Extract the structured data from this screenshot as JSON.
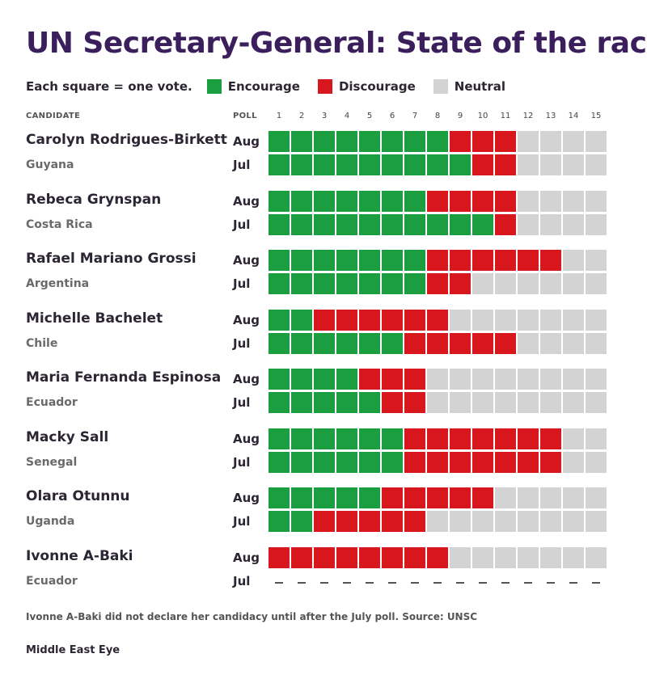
{
  "title": "UN Secretary-General: State of the race",
  "legend": {
    "note": "Each square = one vote.",
    "items": [
      {
        "label": "Encourage",
        "color": "#1a9e3f"
      },
      {
        "label": "Discourage",
        "color": "#d7161d"
      },
      {
        "label": "Neutral",
        "color": "#d3d3d3"
      }
    ]
  },
  "columns": {
    "candidate_header": "CANDIDATE",
    "poll_header": "POLL",
    "numbers": [
      "1",
      "2",
      "3",
      "4",
      "5",
      "6",
      "7",
      "8",
      "9",
      "10",
      "11",
      "12",
      "13",
      "14",
      "15"
    ]
  },
  "footnote": "Ivonne A-Baki did not declare her candidacy until after the July poll. Source: UNSC",
  "source": "Middle East Eye",
  "chart_data": {
    "type": "table",
    "total_votes": 15,
    "colors": {
      "encourage": "#1a9e3f",
      "discourage": "#d7161d",
      "neutral": "#d3d3d3"
    },
    "candidates": [
      {
        "name": "Carolyn Rodrigues-Birkett",
        "country": "Guyana",
        "polls": [
          {
            "label": "Aug",
            "encourage": 8,
            "discourage": 3,
            "neutral": 4
          },
          {
            "label": "Jul",
            "encourage": 9,
            "discourage": 2,
            "neutral": 4
          }
        ]
      },
      {
        "name": "Rebeca Grynspan",
        "country": "Costa Rica",
        "polls": [
          {
            "label": "Aug",
            "encourage": 7,
            "discourage": 4,
            "neutral": 4
          },
          {
            "label": "Jul",
            "encourage": 10,
            "discourage": 1,
            "neutral": 4
          }
        ]
      },
      {
        "name": "Rafael Mariano Grossi",
        "country": "Argentina",
        "polls": [
          {
            "label": "Aug",
            "encourage": 7,
            "discourage": 6,
            "neutral": 2
          },
          {
            "label": "Jul",
            "encourage": 7,
            "discourage": 2,
            "neutral": 6
          }
        ]
      },
      {
        "name": "Michelle Bachelet",
        "country": "Chile",
        "polls": [
          {
            "label": "Aug",
            "encourage": 2,
            "discourage": 6,
            "neutral": 7
          },
          {
            "label": "Jul",
            "encourage": 6,
            "discourage": 5,
            "neutral": 4
          }
        ]
      },
      {
        "name": "Maria Fernanda Espinosa",
        "country": "Ecuador",
        "polls": [
          {
            "label": "Aug",
            "encourage": 4,
            "discourage": 3,
            "neutral": 8
          },
          {
            "label": "Jul",
            "encourage": 5,
            "discourage": 2,
            "neutral": 8
          }
        ]
      },
      {
        "name": "Macky Sall",
        "country": "Senegal",
        "polls": [
          {
            "label": "Aug",
            "encourage": 6,
            "discourage": 7,
            "neutral": 2
          },
          {
            "label": "Jul",
            "encourage": 6,
            "discourage": 7,
            "neutral": 2
          }
        ]
      },
      {
        "name": "Olara Otunnu",
        "country": "Uganda",
        "polls": [
          {
            "label": "Aug",
            "encourage": 5,
            "discourage": 5,
            "neutral": 5
          },
          {
            "label": "Jul",
            "encourage": 2,
            "discourage": 5,
            "neutral": 8
          }
        ]
      },
      {
        "name": "Ivonne A-Baki",
        "country": "Ecuador",
        "polls": [
          {
            "label": "Aug",
            "encourage": 0,
            "discourage": 8,
            "neutral": 7
          },
          {
            "label": "Jul",
            "encourage": null,
            "discourage": null,
            "neutral": null
          }
        ]
      }
    ]
  }
}
